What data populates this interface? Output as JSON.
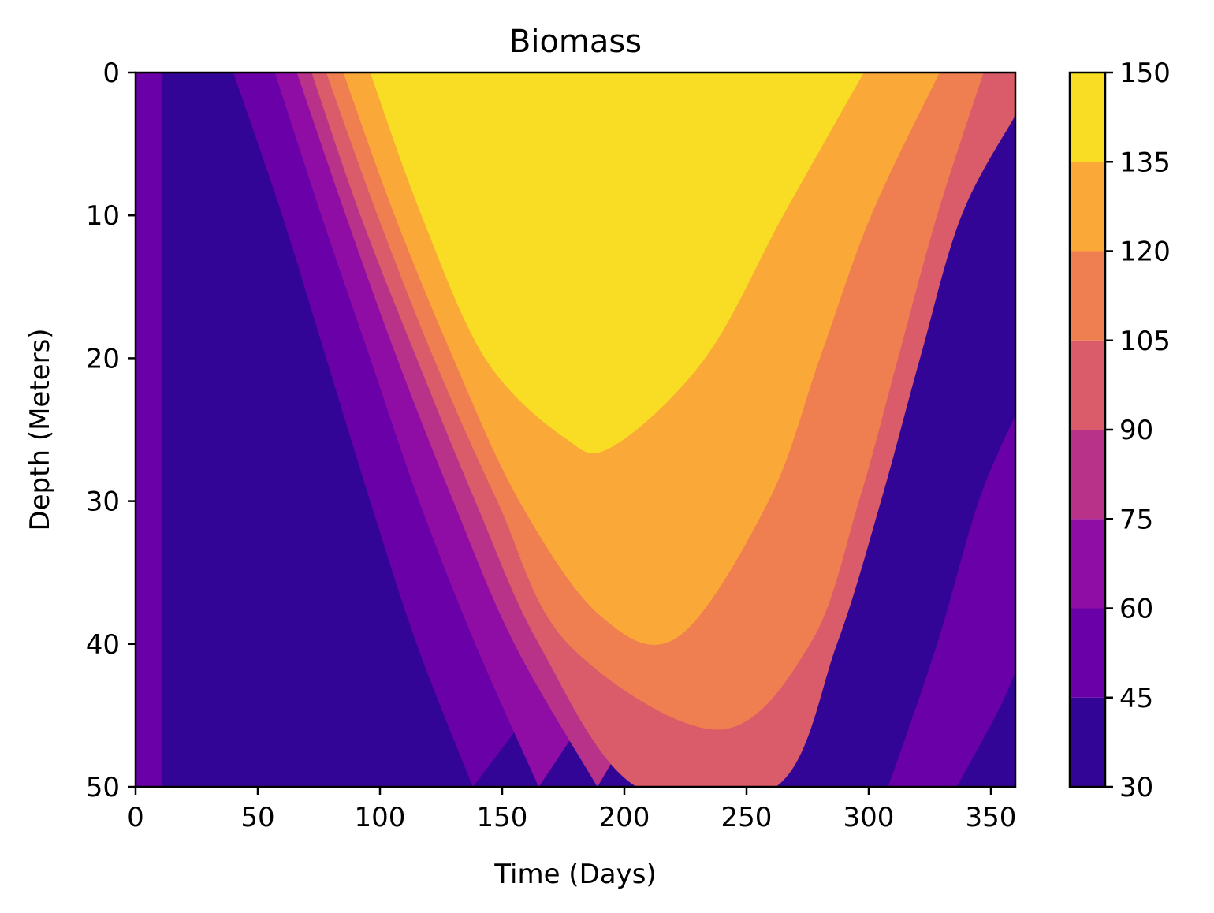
{
  "chart_data": {
    "type": "heatmap",
    "subtype": "filled-contour",
    "title": "Biomass",
    "xlabel": "Time (Days)",
    "ylabel": "Depth (Meters)",
    "xlim": [
      0,
      360
    ],
    "ylim": [
      0,
      50
    ],
    "y_inverted": true,
    "xticks": [
      "0",
      "50",
      "100",
      "150",
      "200",
      "250",
      "300",
      "350"
    ],
    "yticks": [
      "0",
      "10",
      "20",
      "30",
      "40",
      "50"
    ],
    "colormap": "plasma",
    "levels": [
      30,
      45,
      60,
      75,
      90,
      105,
      120,
      135,
      150
    ],
    "level_colors": [
      "#330597",
      "#6a00a8",
      "#8f0da4",
      "#b83289",
      "#da5b69",
      "#ef7e50",
      "#faa838",
      "#f8dd24"
    ],
    "colorbar_ticks": [
      "30",
      "45",
      "60",
      "75",
      "90",
      "105",
      "120",
      "135",
      "150"
    ],
    "contour_boundaries": [
      {
        "level": 45,
        "points": [
          [
            40,
            0
          ],
          [
            60,
            10
          ],
          [
            78,
            20
          ],
          [
            96,
            30
          ],
          [
            115,
            40
          ],
          [
            138,
            50
          ]
        ]
      },
      {
        "level": 60,
        "points": [
          [
            57,
            0
          ],
          [
            76,
            10
          ],
          [
            96,
            20
          ],
          [
            116,
            30
          ],
          [
            139,
            40
          ],
          [
            165,
            50
          ]
        ]
      },
      {
        "level": 75,
        "points": [
          [
            66,
            0
          ],
          [
            86,
            10
          ],
          [
            107,
            20
          ],
          [
            130,
            30
          ],
          [
            155,
            40
          ],
          [
            189,
            50
          ]
        ]
      },
      {
        "level": 90,
        "points": [
          [
            72,
            0
          ],
          [
            92,
            10
          ],
          [
            115,
            20
          ],
          [
            139,
            30
          ],
          [
            165,
            40
          ],
          [
            205,
            50
          ],
          [
            262,
            50
          ],
          [
            287,
            40
          ],
          [
            305,
            30
          ],
          [
            321,
            20
          ],
          [
            338,
            10
          ],
          [
            360,
            3
          ]
        ]
      },
      {
        "level": 105,
        "points": [
          [
            78,
            0
          ],
          [
            99,
            10
          ],
          [
            122,
            20
          ],
          [
            148,
            30
          ],
          [
            177,
            40
          ],
          [
            238,
            46
          ],
          [
            276,
            40
          ],
          [
            296,
            30
          ],
          [
            312,
            20
          ],
          [
            328,
            10
          ],
          [
            347,
            0
          ]
        ]
      },
      {
        "level": 120,
        "points": [
          [
            85,
            0
          ],
          [
            106,
            10
          ],
          [
            130,
            20
          ],
          [
            157,
            30
          ],
          [
            190,
            38
          ],
          [
            222,
            39.5
          ],
          [
            259,
            30
          ],
          [
            280,
            20
          ],
          [
            301,
            10
          ],
          [
            329,
            0
          ]
        ]
      },
      {
        "level": 135,
        "points": [
          [
            96,
            0
          ],
          [
            117,
            10
          ],
          [
            143,
            20
          ],
          [
            175,
            25.5
          ],
          [
            195,
            26.2
          ],
          [
            233,
            20
          ],
          [
            265,
            10
          ],
          [
            298,
            0
          ]
        ]
      },
      {
        "level": 60,
        "side": "late",
        "points": [
          [
            308,
            50
          ],
          [
            328,
            40
          ],
          [
            345,
            30
          ],
          [
            360,
            24
          ]
        ]
      },
      {
        "level": 45,
        "side": "late",
        "points": [
          [
            336,
            50
          ],
          [
            352,
            45
          ],
          [
            360,
            42
          ]
        ]
      }
    ],
    "notes_bands": "band between 0 and 11 days is in 45-60 level; 11 to first contour is 30-45"
  }
}
